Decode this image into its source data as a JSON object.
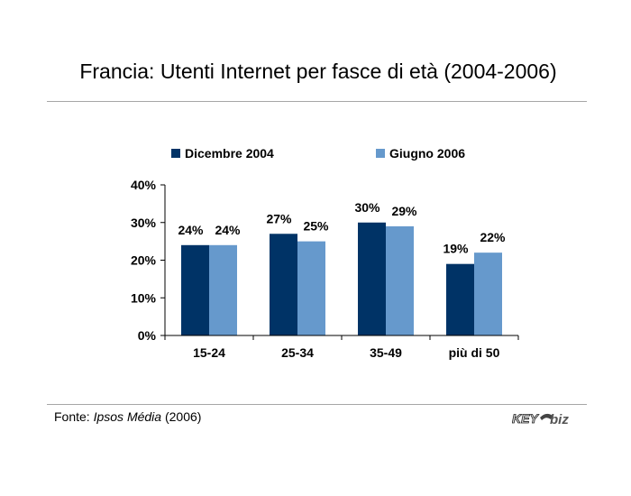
{
  "header": {
    "title": "Francia: Utenti Internet per fasce di età (2004-2006)"
  },
  "chart_data": {
    "type": "bar",
    "categories": [
      "15-24",
      "25-34",
      "35-49",
      "più di 50"
    ],
    "series": [
      {
        "name": "Dicembre 2004",
        "values": [
          24,
          27,
          30,
          19
        ],
        "labels": [
          "24%",
          "27%",
          "30%",
          "19%"
        ],
        "color": "#003366"
      },
      {
        "name": "Giugno 2006",
        "values": [
          24,
          25,
          29,
          22
        ],
        "labels": [
          "24%",
          "25%",
          "29%",
          "22%"
        ],
        "color": "#6699cc"
      }
    ],
    "yticks": [
      0,
      10,
      20,
      30,
      40
    ],
    "ytick_labels": [
      "0%",
      "10%",
      "20%",
      "30%",
      "40%"
    ],
    "ylim": [
      0,
      40
    ],
    "legend_position": "top",
    "grid": false
  },
  "footer": {
    "source_prefix": "Fonte: ",
    "source_name": "Ipsos Média",
    "source_suffix": " (2006)",
    "logo_key": "KEY",
    "logo_biz": "biz"
  }
}
